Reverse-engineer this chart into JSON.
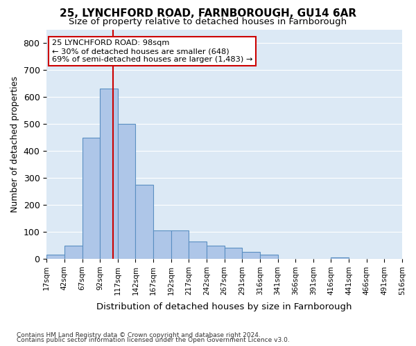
{
  "title1": "25, LYNCHFORD ROAD, FARNBOROUGH, GU14 6AR",
  "title2": "Size of property relative to detached houses in Farnborough",
  "xlabel": "Distribution of detached houses by size in Farnborough",
  "ylabel": "Number of detached properties",
  "footnote1": "Contains HM Land Registry data © Crown copyright and database right 2024.",
  "footnote2": "Contains public sector information licensed under the Open Government Licence v3.0.",
  "bin_labels": [
    "17sqm",
    "42sqm",
    "67sqm",
    "92sqm",
    "117sqm",
    "142sqm",
    "167sqm",
    "192sqm",
    "217sqm",
    "242sqm",
    "267sqm",
    "291sqm",
    "316sqm",
    "341sqm",
    "366sqm",
    "391sqm",
    "416sqm",
    "441sqm",
    "466sqm",
    "491sqm",
    "516sqm"
  ],
  "bar_values": [
    15,
    50,
    450,
    630,
    500,
    275,
    105,
    105,
    65,
    50,
    40,
    25,
    15,
    0,
    0,
    0,
    5,
    0,
    0,
    0
  ],
  "bar_color": "#aec6e8",
  "bar_edge_color": "#5a8fc2",
  "vline_color": "#cc0000",
  "annotation_text": "25 LYNCHFORD ROAD: 98sqm\n← 30% of detached houses are smaller (648)\n69% of semi-detached houses are larger (1,483) →",
  "annotation_box_color": "#ffffff",
  "annotation_box_edge": "#cc0000",
  "ylim": [
    0,
    850
  ],
  "yticks": [
    0,
    100,
    200,
    300,
    400,
    500,
    600,
    700,
    800
  ],
  "background_color": "#dce9f5",
  "grid_color": "#ffffff"
}
